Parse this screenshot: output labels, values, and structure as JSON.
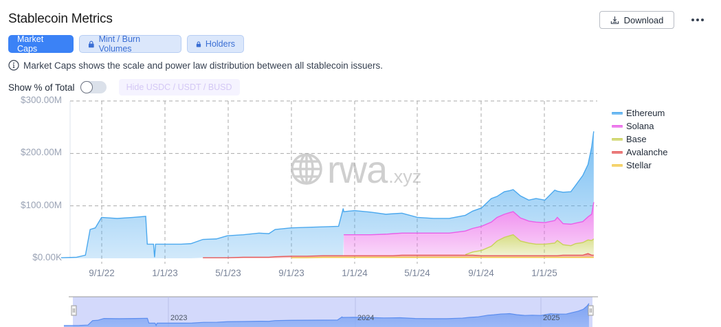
{
  "header": {
    "title": "Stablecoin Metrics",
    "download_label": "Download",
    "more_icon": "ellipsis-horizontal-icon"
  },
  "tabs": [
    {
      "label": "Market Caps",
      "active": true,
      "locked": false
    },
    {
      "label": "Mint / Burn Volumes",
      "active": false,
      "locked": true
    },
    {
      "label": "Holders",
      "active": false,
      "locked": true
    }
  ],
  "info": {
    "icon": "info-icon",
    "text": "Market Caps shows the scale and power law distribution between all stablecoin issuers."
  },
  "controls": {
    "show_pct_label": "Show % of Total",
    "show_pct_enabled": false,
    "hide_button_label": "Hide USDC / USDT / BUSD"
  },
  "watermark": {
    "main": "rwa",
    "sub": ".xyz"
  },
  "colors": {
    "Ethereum": "#4aa8ee",
    "Solana": "#e95ee8",
    "Base": "#c9d15a",
    "Avalanche": "#e55a5a",
    "Stellar": "#f2c94c",
    "grid": "#aaaaaa",
    "slider_bg": "#d3d9fb",
    "slider_line": "#5b8def"
  },
  "slider": {
    "labels": [
      "2023",
      "2024",
      "2025"
    ]
  },
  "chart_data": {
    "type": "area",
    "stacked": true,
    "title": "Stablecoin Market Caps",
    "xlabel": "",
    "ylabel": "",
    "ylim": [
      0,
      300
    ],
    "y_unit": "$M",
    "y_ticks": [
      "$0.00K",
      "$100.00M",
      "$200.00M",
      "$300.00M"
    ],
    "x_ticks": [
      "9/1/22",
      "1/1/23",
      "5/1/23",
      "9/1/23",
      "1/1/24",
      "5/1/24",
      "9/1/24",
      "1/1/25"
    ],
    "grid": true,
    "legend_position": "right",
    "legend": [
      "Ethereum",
      "Solana",
      "Base",
      "Avalanche",
      "Stellar"
    ],
    "x": [
      "6/15/22",
      "7/15/22",
      "8/1/22",
      "8/10/22",
      "8/20/22",
      "9/1/22",
      "10/1/22",
      "11/1/22",
      "11/25/22",
      "11/28/22",
      "12/10/22",
      "12/12/22",
      "12/14/22",
      "1/1/23",
      "2/1/23",
      "2/20/23",
      "3/15/23",
      "4/10/23",
      "5/1/23",
      "6/1/23",
      "7/1/23",
      "7/20/23",
      "8/1/23",
      "9/1/23",
      "10/1/23",
      "11/1/23",
      "12/1/23",
      "12/10/23",
      "12/11/23",
      "1/1/24",
      "2/1/24",
      "3/1/24",
      "3/15/24",
      "4/1/24",
      "5/1/24",
      "6/1/24",
      "7/1/24",
      "8/1/24",
      "8/15/24",
      "9/1/24",
      "9/20/24",
      "10/1/24",
      "10/15/24",
      "10/25/24",
      "11/1/24",
      "11/15/24",
      "12/1/24",
      "12/15/24",
      "1/1/25",
      "1/20/25",
      "1/25/25",
      "2/5/25",
      "2/20/25",
      "3/1/25",
      "3/15/25",
      "3/25/25",
      "4/1/25",
      "4/5/25"
    ],
    "series": [
      {
        "name": "Stellar",
        "values": [
          0,
          0,
          0,
          0,
          0,
          0,
          0,
          0,
          0,
          0,
          0,
          0,
          0,
          0,
          0,
          0,
          0,
          0,
          0,
          0,
          0,
          0,
          0,
          1,
          1,
          2,
          2,
          2,
          2,
          2,
          2,
          2,
          2,
          2,
          2,
          2,
          2,
          2,
          2,
          2,
          2,
          2,
          2,
          2,
          2,
          2,
          2,
          2,
          2,
          2,
          2,
          2,
          2,
          2,
          2,
          2,
          2,
          2
        ]
      },
      {
        "name": "Avalanche",
        "values": [
          0,
          0,
          0,
          0,
          0,
          0,
          0,
          0,
          0,
          0,
          0,
          0,
          0,
          0,
          0,
          0,
          1,
          1,
          1,
          2,
          2,
          2,
          3,
          3,
          3,
          3,
          3,
          3,
          3,
          3,
          3,
          3,
          3,
          4,
          4,
          4,
          4,
          4,
          4,
          3,
          3,
          3,
          3,
          3,
          3,
          3,
          3,
          3,
          3,
          3,
          3,
          4,
          4,
          4,
          4,
          7,
          4,
          4
        ]
      },
      {
        "name": "Base",
        "values": [
          0,
          0,
          0,
          0,
          0,
          0,
          0,
          0,
          0,
          0,
          0,
          0,
          0,
          0,
          0,
          0,
          0,
          0,
          0,
          0,
          0,
          0,
          0,
          0,
          0,
          0,
          0,
          0,
          0,
          0,
          0,
          0,
          0,
          0,
          0,
          0,
          0,
          1,
          6,
          10,
          18,
          28,
          35,
          38,
          40,
          28,
          24,
          22,
          22,
          24,
          29,
          20,
          18,
          22,
          24,
          26,
          28,
          31
        ]
      },
      {
        "name": "Solana",
        "values": [
          0,
          0,
          0,
          0,
          0,
          0,
          0,
          0,
          0,
          0,
          0,
          0,
          0,
          0,
          0,
          0,
          0,
          0,
          0,
          0,
          0,
          0,
          0,
          0,
          0,
          0,
          0,
          0,
          40,
          40,
          40,
          41,
          42,
          42,
          42,
          42,
          42,
          45,
          45,
          46,
          46,
          45,
          44,
          44,
          44,
          44,
          42,
          42,
          41,
          43,
          44,
          40,
          41,
          39,
          40,
          44,
          50,
          70
        ]
      },
      {
        "name": "Ethereum",
        "values": [
          1,
          2,
          6,
          55,
          58,
          78,
          76,
          78,
          80,
          27,
          27,
          2,
          27,
          27,
          27,
          28,
          35,
          36,
          42,
          43,
          46,
          45,
          52,
          54,
          55,
          55,
          56,
          90,
          44,
          46,
          43,
          38,
          38,
          38,
          30,
          28,
          28,
          30,
          33,
          35,
          45,
          40,
          43,
          42,
          42,
          42,
          40,
          45,
          43,
          58,
          50,
          60,
          62,
          72,
          88,
          100,
          128,
          135
        ]
      }
    ]
  }
}
